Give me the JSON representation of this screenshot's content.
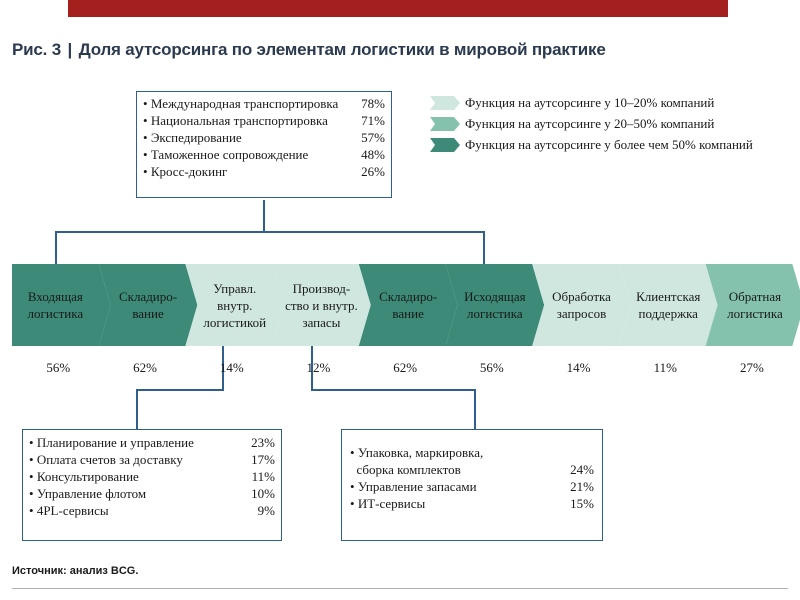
{
  "title": {
    "prefix": "Рис. 3",
    "separator": "|",
    "text": "Доля аутсорсинга по элементам логистики в мировой практике"
  },
  "top_box": {
    "items": [
      {
        "label": "Международная транспортировка",
        "value": "78%"
      },
      {
        "label": "Национальная транспортировка",
        "value": "71%"
      },
      {
        "label": "Экспедирование",
        "value": "57%"
      },
      {
        "label": "Таможенное сопровождение",
        "value": "48%"
      },
      {
        "label": "Кросс-докинг",
        "value": "26%"
      }
    ]
  },
  "legend": [
    {
      "text": "Функция на аутсорсинге у 10–20% компаний",
      "color": "#cfe7df"
    },
    {
      "text": "Функция на аутсорсинге у 20–50% компаний",
      "color": "#84c2ae"
    },
    {
      "text": "Функция на аутсорсинге у более чем 50% компаний",
      "color": "#3c8a77"
    }
  ],
  "chain": [
    {
      "label": "Входящая\nлогистика",
      "pct": "56%",
      "color": "#3c8a77"
    },
    {
      "label": "Складиро-\nвание",
      "pct": "62%",
      "color": "#3c8a77"
    },
    {
      "label": "Управл.\nвнутр.\nлогистикой",
      "pct": "14%",
      "color": "#cfe7df"
    },
    {
      "label": "Производ-\nство и внутр.\nзапасы",
      "pct": "12%",
      "color": "#cfe7df"
    },
    {
      "label": "Складиро-\nвание",
      "pct": "62%",
      "color": "#3c8a77"
    },
    {
      "label": "Исходящая\nлогистика",
      "pct": "56%",
      "color": "#3c8a77"
    },
    {
      "label": "Обработка\nзапросов",
      "pct": "14%",
      "color": "#cfe7df"
    },
    {
      "label": "Клиентская\nподдержка",
      "pct": "11%",
      "color": "#cfe7df"
    },
    {
      "label": "Обратная\nлогистика",
      "pct": "27%",
      "color": "#84c2ae"
    }
  ],
  "left_box": {
    "items": [
      {
        "label": "Планирование и управление",
        "value": "23%"
      },
      {
        "label": "Оплата счетов за доставку",
        "value": "17%"
      },
      {
        "label": "Консультирование",
        "value": "11%"
      },
      {
        "label": "Управление флотом",
        "value": "10%"
      },
      {
        "label": "4PL-сервисы",
        "value": "9%"
      }
    ]
  },
  "right_box": {
    "items": [
      {
        "label": "Упаковка, маркировка,",
        "value": ""
      },
      {
        "label": "сборка комплектов",
        "value": "24%",
        "cont": true
      },
      {
        "label": "Управление запасами",
        "value": "21%"
      },
      {
        "label": "ИТ-сервисы",
        "value": "15%"
      }
    ]
  },
  "source": "Источник: анализ BCG."
}
